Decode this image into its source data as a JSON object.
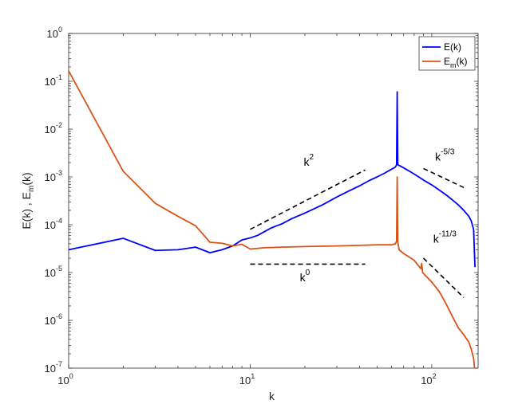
{
  "chart_data": {
    "type": "line",
    "title": "",
    "xscale": "log",
    "yscale": "log",
    "xlim": [
      1,
      180
    ],
    "ylim": [
      1e-07,
      1
    ],
    "xlabel": "k",
    "ylabel": {
      "prefix": "E(k) , E",
      "sub": "m",
      "suffix": "(k)"
    },
    "x_ticks": [
      {
        "value": 1,
        "base": "10",
        "exp": "0"
      },
      {
        "value": 10,
        "base": "10",
        "exp": "1"
      },
      {
        "value": 100,
        "base": "10",
        "exp": "2"
      }
    ],
    "y_ticks": [
      {
        "value": 1e-07,
        "base": "10",
        "exp": "-7"
      },
      {
        "value": 1e-06,
        "base": "10",
        "exp": "-6"
      },
      {
        "value": 1e-05,
        "base": "10",
        "exp": "-5"
      },
      {
        "value": 0.0001,
        "base": "10",
        "exp": "-4"
      },
      {
        "value": 0.001,
        "base": "10",
        "exp": "-3"
      },
      {
        "value": 0.01,
        "base": "10",
        "exp": "-2"
      },
      {
        "value": 0.1,
        "base": "10",
        "exp": "-1"
      },
      {
        "value": 1,
        "base": "10",
        "exp": "0"
      }
    ],
    "legend": {
      "position": "top-right",
      "entries": [
        {
          "prefix": "E(k)",
          "sub": "",
          "suffix": "",
          "color": "#0000ff"
        },
        {
          "prefix": "E",
          "sub": "m",
          "suffix": "(k)",
          "color": "#d95319"
        }
      ]
    },
    "series": [
      {
        "color": "#0000ff",
        "points": [
          [
            1,
            3e-05
          ],
          [
            2,
            5.2e-05
          ],
          [
            3,
            2.9e-05
          ],
          [
            4,
            3e-05
          ],
          [
            5,
            3.4e-05
          ],
          [
            6,
            2.6e-05
          ],
          [
            7,
            3e-05
          ],
          [
            8,
            3.6e-05
          ],
          [
            9,
            4.8e-05
          ],
          [
            10,
            5.3e-05
          ],
          [
            11,
            6e-05
          ],
          [
            12,
            7.2e-05
          ],
          [
            13,
            8.5e-05
          ],
          [
            14,
            9.5e-05
          ],
          [
            15,
            0.000105
          ],
          [
            17,
            0.000135
          ],
          [
            20,
            0.000175
          ],
          [
            25,
            0.00026
          ],
          [
            30,
            0.00038
          ],
          [
            35,
            0.00051
          ],
          [
            40,
            0.00065
          ],
          [
            45,
            0.00083
          ],
          [
            50,
            0.001
          ],
          [
            55,
            0.0012
          ],
          [
            60,
            0.00145
          ],
          [
            63,
            0.0016
          ],
          [
            64,
            0.0018
          ],
          [
            64.5,
            0.06
          ],
          [
            65,
            0.0018
          ],
          [
            70,
            0.00155
          ],
          [
            80,
            0.00115
          ],
          [
            90,
            0.00086
          ],
          [
            100,
            0.00068
          ],
          [
            110,
            0.00053
          ],
          [
            120,
            0.00042
          ],
          [
            130,
            0.00033
          ],
          [
            140,
            0.00026
          ],
          [
            150,
            0.0002
          ],
          [
            160,
            0.00015
          ],
          [
            165,
            0.00012
          ],
          [
            170,
            8e-05
          ],
          [
            173,
            1.3e-05
          ]
        ]
      },
      {
        "color": "#d95319",
        "points": [
          [
            1,
            0.165
          ],
          [
            2,
            0.0013
          ],
          [
            3,
            0.00028
          ],
          [
            4,
            0.00015
          ],
          [
            5,
            9.5e-05
          ],
          [
            6,
            4.3e-05
          ],
          [
            7,
            4.1e-05
          ],
          [
            8,
            3.6e-05
          ],
          [
            9,
            3.9e-05
          ],
          [
            10,
            3.1e-05
          ],
          [
            12,
            3.3e-05
          ],
          [
            15,
            3.4e-05
          ],
          [
            20,
            3.5e-05
          ],
          [
            30,
            3.6e-05
          ],
          [
            40,
            3.7e-05
          ],
          [
            50,
            3.8e-05
          ],
          [
            60,
            3.8e-05
          ],
          [
            63,
            4e-05
          ],
          [
            64,
            4.5e-05
          ],
          [
            64.5,
            0.001
          ],
          [
            65,
            4.5e-05
          ],
          [
            66,
            3e-05
          ],
          [
            70,
            2.5e-05
          ],
          [
            80,
            1.8e-05
          ],
          [
            87,
            1.2e-05
          ],
          [
            88,
            1.55e-05
          ],
          [
            89,
            1e-05
          ],
          [
            100,
            6.3e-06
          ],
          [
            110,
            4e-06
          ],
          [
            120,
            2.2e-06
          ],
          [
            130,
            1.2e-06
          ],
          [
            140,
            7e-07
          ],
          [
            150,
            5e-07
          ],
          [
            160,
            3.5e-07
          ],
          [
            165,
            2.5e-07
          ],
          [
            170,
            1.6e-07
          ],
          [
            172,
            1e-07
          ]
        ]
      }
    ],
    "reference_lines": [
      {
        "points": [
          [
            10,
            8e-05
          ],
          [
            43,
            0.0014
          ]
        ],
        "label": {
          "base": "k",
          "exp": "2"
        },
        "label_at": [
          21,
          0.0017
        ]
      },
      {
        "points": [
          [
            10,
            1.5e-05
          ],
          [
            43,
            1.5e-05
          ]
        ],
        "label": {
          "base": "k",
          "exp": "0"
        },
        "label_at": [
          20,
          6.5e-06
        ]
      },
      {
        "points": [
          [
            90,
            0.0015
          ],
          [
            150,
            0.0006
          ]
        ],
        "label": {
          "base": "k",
          "exp": "-5/3"
        },
        "label_at": [
          118,
          0.0022
        ]
      },
      {
        "points": [
          [
            90,
            2e-05
          ],
          [
            150,
            3e-06
          ]
        ],
        "label": {
          "base": "k",
          "exp": "-11/3"
        },
        "label_at": [
          118,
          4.2e-05
        ]
      }
    ]
  }
}
